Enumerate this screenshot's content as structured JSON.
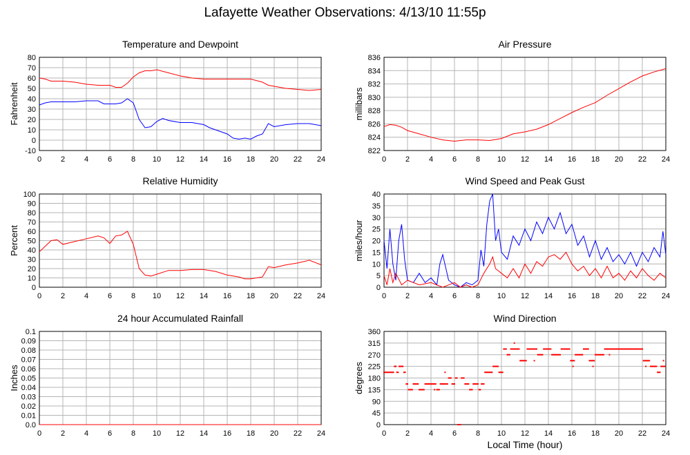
{
  "page": {
    "title": "Lafayette Weather Observations: 4/13/10 11:55p"
  },
  "colors": {
    "red": "#ff0000",
    "blue": "#0000ff",
    "grid": "#b4b4b4"
  },
  "chart_data": [
    {
      "id": "temp",
      "type": "line",
      "title": "Temperature and Dewpoint",
      "ylabel": "Fahrenheit",
      "xlabel": "",
      "xlim": [
        0,
        24
      ],
      "ylim": [
        -10,
        80
      ],
      "xticks": [
        0,
        2,
        4,
        6,
        8,
        10,
        12,
        14,
        16,
        18,
        20,
        22,
        24
      ],
      "yticks": [
        -10,
        0,
        10,
        20,
        30,
        40,
        50,
        60,
        70,
        80
      ],
      "grid": true,
      "series": [
        {
          "color": "#ff0000",
          "x": [
            0,
            0.5,
            1,
            1.5,
            2,
            3,
            4,
            5,
            6,
            6.5,
            7,
            7.5,
            8,
            8.5,
            9,
            9.5,
            10,
            11,
            12,
            13,
            14,
            15,
            16,
            17,
            18,
            19,
            19.5,
            20,
            21,
            22,
            23,
            24
          ],
          "y": [
            60,
            59,
            57,
            57,
            57,
            56,
            54,
            53,
            53,
            51,
            51,
            55,
            61,
            65,
            67,
            67,
            68,
            65,
            62,
            60,
            59,
            59,
            59,
            59,
            59,
            56,
            53,
            52,
            50,
            49,
            48,
            49
          ]
        },
        {
          "color": "#0000ff",
          "x": [
            0,
            0.5,
            1,
            1.5,
            2,
            3,
            4,
            5,
            5.5,
            6,
            6.5,
            7,
            7.5,
            8,
            8.5,
            9,
            9.5,
            10,
            10.5,
            11,
            12,
            13,
            14,
            14.5,
            15,
            16,
            16.5,
            17,
            17.5,
            18,
            18.5,
            19,
            19.5,
            20,
            21,
            22,
            23,
            24
          ],
          "y": [
            34,
            36,
            37,
            37,
            37,
            37,
            38,
            38,
            35,
            35,
            35,
            36,
            40,
            36,
            20,
            12,
            13,
            18,
            21,
            19,
            17,
            17,
            15,
            12,
            10,
            6,
            2,
            1,
            2,
            1,
            4,
            6,
            16,
            13,
            15,
            16,
            16,
            14
          ]
        }
      ]
    },
    {
      "id": "pressure",
      "type": "line",
      "title": "Air Pressure",
      "ylabel": "millibars",
      "xlabel": "",
      "xlim": [
        0,
        24
      ],
      "ylim": [
        822,
        836
      ],
      "xticks": [
        0,
        2,
        4,
        6,
        8,
        10,
        12,
        14,
        16,
        18,
        20,
        22,
        24
      ],
      "yticks": [
        822,
        824,
        826,
        828,
        830,
        832,
        834,
        836
      ],
      "grid": true,
      "series": [
        {
          "color": "#ff0000",
          "x": [
            0,
            0.5,
            1,
            1.5,
            2,
            3,
            4,
            5,
            6,
            7,
            8,
            9,
            10,
            11,
            12,
            13,
            14,
            15,
            16,
            17,
            18,
            19,
            20,
            21,
            22,
            23,
            24
          ],
          "y": [
            825.6,
            825.9,
            825.8,
            825.5,
            825,
            824.5,
            824,
            823.6,
            823.4,
            823.6,
            823.6,
            823.5,
            823.8,
            824.5,
            824.8,
            825.2,
            825.9,
            826.8,
            827.7,
            828.5,
            829.2,
            830.3,
            831.3,
            832.3,
            833.2,
            833.8,
            834.3
          ]
        }
      ]
    },
    {
      "id": "humidity",
      "type": "line",
      "title": "Relative Humidity",
      "ylabel": "Percent",
      "xlabel": "",
      "xlim": [
        0,
        24
      ],
      "ylim": [
        0,
        100
      ],
      "xticks": [
        0,
        2,
        4,
        6,
        8,
        10,
        12,
        14,
        16,
        18,
        20,
        22,
        24
      ],
      "yticks": [
        0,
        10,
        20,
        30,
        40,
        50,
        60,
        70,
        80,
        90,
        100
      ],
      "grid": true,
      "series": [
        {
          "color": "#ff0000",
          "x": [
            0,
            0.5,
            1,
            1.5,
            2,
            3,
            4,
            5,
            5.5,
            6,
            6.5,
            7,
            7.5,
            8,
            8.5,
            9,
            9.5,
            10,
            11,
            12,
            13,
            14,
            15,
            16,
            17,
            17.5,
            18,
            19,
            19.5,
            20,
            21,
            22,
            23,
            24
          ],
          "y": [
            38,
            44,
            50,
            51,
            46,
            49,
            52,
            55,
            53,
            47,
            55,
            56,
            60,
            46,
            20,
            13,
            12,
            14,
            18,
            18,
            19,
            19,
            17,
            13,
            11,
            9,
            9,
            11,
            22,
            21,
            24,
            26,
            29,
            24
          ]
        }
      ]
    },
    {
      "id": "wind",
      "type": "line",
      "title": "Wind Speed and Peak Gust",
      "ylabel": "miles/hour",
      "xlabel": "",
      "xlim": [
        0,
        24
      ],
      "ylim": [
        0,
        40
      ],
      "xticks": [
        0,
        2,
        4,
        6,
        8,
        10,
        12,
        14,
        16,
        18,
        20,
        22,
        24
      ],
      "yticks": [
        0,
        5,
        10,
        15,
        20,
        25,
        30,
        35,
        40
      ],
      "grid": true,
      "series": [
        {
          "color": "#0000ff",
          "x": [
            0,
            0.25,
            0.5,
            0.75,
            1,
            1.25,
            1.5,
            1.75,
            2,
            2.5,
            3,
            3.5,
            4,
            4.5,
            4.75,
            5,
            5.5,
            6,
            6.5,
            7,
            7.5,
            8,
            8.25,
            8.5,
            8.75,
            9,
            9.25,
            9.5,
            9.75,
            10,
            10.5,
            11,
            11.5,
            12,
            12.5,
            13,
            13.5,
            14,
            14.5,
            15,
            15.5,
            16,
            16.5,
            17,
            17.5,
            18,
            18.5,
            19,
            19.5,
            20,
            20.5,
            21,
            21.5,
            22,
            22.5,
            23,
            23.5,
            23.75,
            24
          ],
          "y": [
            20,
            8,
            25,
            10,
            3,
            20,
            27,
            12,
            3,
            2,
            6,
            2,
            4,
            1,
            10,
            14,
            3,
            1,
            0,
            2,
            1,
            3,
            16,
            9,
            27,
            37,
            40,
            20,
            25,
            15,
            12,
            22,
            18,
            25,
            20,
            28,
            23,
            30,
            25,
            32,
            23,
            27,
            18,
            22,
            13,
            20,
            12,
            17,
            11,
            14,
            10,
            15,
            9,
            15,
            11,
            17,
            13,
            24,
            14
          ]
        },
        {
          "color": "#ff0000",
          "x": [
            0,
            0.25,
            0.5,
            0.75,
            1,
            1.5,
            2,
            3,
            4,
            5,
            6,
            6.5,
            7,
            7.5,
            8,
            8.5,
            9,
            9.25,
            9.5,
            10,
            10.5,
            11,
            11.5,
            12,
            12.5,
            13,
            13.5,
            14,
            14.5,
            15,
            15.5,
            16,
            16.5,
            17,
            17.5,
            18,
            18.5,
            19,
            19.5,
            20,
            20.5,
            21,
            21.5,
            22,
            22.5,
            23,
            23.5,
            24
          ],
          "y": [
            5,
            1,
            8,
            2,
            6,
            1,
            3,
            1,
            2,
            0,
            2,
            0,
            1,
            0,
            1,
            6,
            10,
            13,
            8,
            6,
            4,
            8,
            4,
            10,
            6,
            11,
            9,
            13,
            14,
            12,
            15,
            10,
            7,
            9,
            5,
            8,
            4,
            9,
            4,
            6,
            3,
            7,
            4,
            8,
            5,
            3,
            6,
            4
          ]
        }
      ]
    },
    {
      "id": "rain",
      "type": "line",
      "title": "24 hour Accumulated Rainfall",
      "ylabel": "Inches",
      "xlabel": "",
      "xlim": [
        0,
        24
      ],
      "ylim": [
        0,
        0.1
      ],
      "xticks": [
        0,
        2,
        4,
        6,
        8,
        10,
        12,
        14,
        16,
        18,
        20,
        22,
        24
      ],
      "yticks": [
        "0.0",
        "0.01",
        "0.02",
        "0.03",
        "0.04",
        "0.05",
        "0.06",
        "0.07",
        "0.08",
        "0.09",
        "0.1"
      ],
      "grid": true,
      "series": [
        {
          "color": "#ff0000",
          "x": [
            0,
            24
          ],
          "y": [
            0,
            0
          ]
        }
      ]
    },
    {
      "id": "winddir",
      "type": "scatter",
      "title": "Wind Direction",
      "ylabel": "degrees",
      "xlabel": "Local Time (hour)",
      "xlim": [
        0,
        24
      ],
      "ylim": [
        0,
        360
      ],
      "xticks": [
        0,
        2,
        4,
        6,
        8,
        10,
        12,
        14,
        16,
        18,
        20,
        22,
        24
      ],
      "yticks": [
        0,
        45,
        90,
        135,
        180,
        225,
        270,
        315,
        360
      ],
      "grid": true,
      "series": [
        {
          "color": "#ff0000",
          "segments": [
            [
              0,
              0.9,
              202
            ],
            [
              0.9,
              1.1,
              225
            ],
            [
              1.1,
              1.3,
              202
            ],
            [
              1.3,
              1.7,
              225
            ],
            [
              1.7,
              1.9,
              202
            ],
            [
              1.9,
              2.1,
              157
            ],
            [
              2.1,
              2.5,
              135
            ],
            [
              2.5,
              3.0,
              157
            ],
            [
              3.0,
              3.5,
              135
            ],
            [
              3.5,
              4.5,
              157
            ],
            [
              4.5,
              4.8,
              135
            ],
            [
              4.8,
              5.5,
              157
            ],
            [
              5.5,
              5.8,
              180
            ],
            [
              5.8,
              6.1,
              157
            ],
            [
              6.1,
              6.3,
              180
            ],
            [
              6.3,
              6.6,
              0
            ],
            [
              6.6,
              6.9,
              180
            ],
            [
              6.9,
              7.3,
              157
            ],
            [
              7.3,
              7.6,
              135
            ],
            [
              7.6,
              8.1,
              157
            ],
            [
              8.1,
              8.3,
              135
            ],
            [
              8.3,
              8.6,
              157
            ],
            [
              8.6,
              8.8,
              202
            ],
            [
              8.8,
              9.3,
              202
            ],
            [
              9.3,
              9.8,
              225
            ],
            [
              9.8,
              10.2,
              202
            ],
            [
              10.2,
              10.5,
              292
            ],
            [
              10.5,
              10.8,
              270
            ],
            [
              10.8,
              11.6,
              292
            ],
            [
              11.6,
              12.2,
              247
            ],
            [
              12.2,
              13.1,
              292
            ],
            [
              13.1,
              13.6,
              270
            ],
            [
              13.6,
              14.3,
              292
            ],
            [
              14.3,
              15.1,
              270
            ],
            [
              15.1,
              15.9,
              292
            ],
            [
              15.9,
              16.3,
              247
            ],
            [
              16.3,
              17.0,
              270
            ],
            [
              17.0,
              17.5,
              292
            ],
            [
              17.5,
              18.0,
              247
            ],
            [
              18.0,
              18.8,
              270
            ],
            [
              18.8,
              21.0,
              292
            ],
            [
              21.0,
              21.7,
              292
            ],
            [
              21.7,
              22.1,
              292
            ],
            [
              22.1,
              22.7,
              247
            ],
            [
              22.7,
              23.3,
              225
            ],
            [
              23.3,
              23.6,
              202
            ],
            [
              23.6,
              24,
              225
            ]
          ],
          "extra": [
            [
              1.0,
              225
            ],
            [
              4.3,
              135
            ],
            [
              5.2,
              202
            ],
            [
              6.2,
              180
            ],
            [
              11.1,
              315
            ],
            [
              12.8,
              247
            ],
            [
              16.1,
              225
            ],
            [
              17.8,
              225
            ],
            [
              19.2,
              270
            ],
            [
              22.3,
              225
            ],
            [
              23.8,
              247
            ]
          ]
        }
      ]
    }
  ]
}
